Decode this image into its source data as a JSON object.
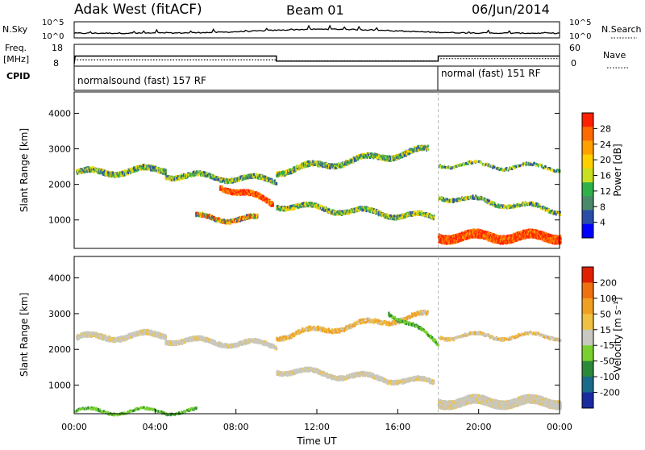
{
  "header": {
    "station": "Adak West (fitACF)",
    "beam": "Beam 01",
    "date": "06/Jun/2014"
  },
  "top_panels": {
    "left_labels": {
      "nsky": "N.Sky",
      "freq": "Freq.",
      "freq_unit": "[MHz]",
      "cpid": "CPID"
    },
    "right_labels": {
      "nsearch": "N.Search",
      "nave": "Nave"
    },
    "noise_ticks": [
      "10^5",
      "10^0"
    ],
    "freq_ticks": [
      "18",
      "8"
    ],
    "nave_ticks": [
      "60",
      "0"
    ],
    "cpid_segments": [
      {
        "label": "normalsound (fast) 157 RF",
        "start_hour": 0,
        "end_hour": 18
      },
      {
        "label": "normal (fast) 151 RF",
        "start_hour": 18,
        "end_hour": 24
      }
    ],
    "freq_series": {
      "hours": [
        0,
        0.05,
        10,
        10,
        18,
        18,
        24
      ],
      "mhz": [
        8,
        12.5,
        12.5,
        9.5,
        9.5,
        12.5,
        12.5
      ]
    },
    "nave_series": {
      "hours": [
        0,
        10,
        10,
        18,
        18,
        24
      ],
      "values": [
        14,
        14,
        10,
        10,
        18,
        18
      ]
    }
  },
  "chart_data": [
    {
      "type": "heatmap",
      "title": "",
      "ylabel": "Slant Range [km]",
      "xlabel": "",
      "yticks": [
        "1000",
        "2000",
        "3000",
        "4000"
      ],
      "ylim": [
        200,
        4600
      ],
      "colorbar": {
        "label": "Power [dB]",
        "ticks": [
          "4",
          "8",
          "12",
          "16",
          "20",
          "24",
          "28"
        ],
        "colors": [
          "#0000ff",
          "#2a4da8",
          "#4a8a6a",
          "#2fb14a",
          "#c8e020",
          "#ffd000",
          "#ffa000",
          "#ff6a00",
          "#ff2000"
        ]
      }
    },
    {
      "type": "heatmap",
      "title": "",
      "ylabel": "Slant Range [km]",
      "xlabel": "Time UT",
      "yticks": [
        "1000",
        "2000",
        "3000",
        "4000"
      ],
      "ylim": [
        200,
        4600
      ],
      "xticks": [
        "00:00",
        "04:00",
        "08:00",
        "12:00",
        "16:00",
        "20:00",
        "00:00"
      ],
      "xlim_hours": [
        0,
        24
      ],
      "colorbar": {
        "label": "Velocity [m s⁻¹]",
        "ticks": [
          "200",
          "100",
          "50",
          "15",
          "-15",
          "-50",
          "-100",
          "-200"
        ],
        "colors": [
          "#1a2aa0",
          "#1a6a8a",
          "#2a8a3a",
          "#7ad030",
          "#c8c8c0",
          "#f0c040",
          "#f0a020",
          "#f07010",
          "#e02000"
        ]
      }
    }
  ]
}
